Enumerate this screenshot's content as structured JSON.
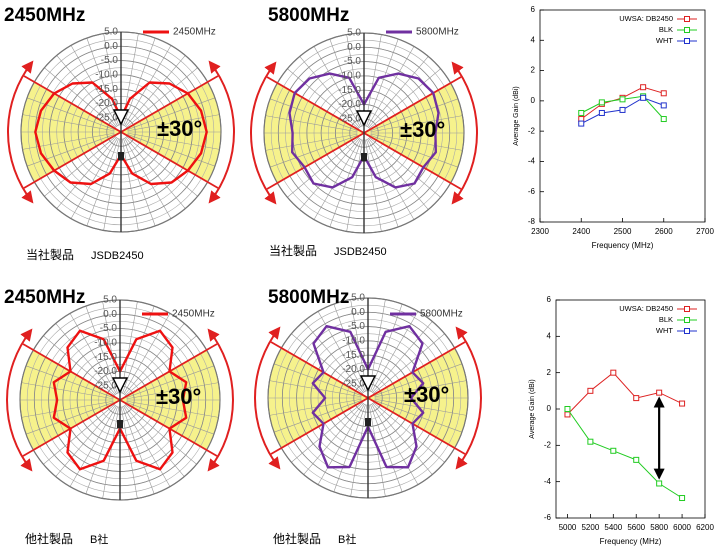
{
  "chart_data": [
    {
      "type": "polar",
      "title": "2450MHz",
      "annotation": "±30°",
      "sector": 30,
      "caption": [
        "当社製品",
        "JSDB2450"
      ],
      "rlim": [
        -30,
        5
      ],
      "rticks": [
        {
          "value": -25,
          "label": "-25.0"
        },
        {
          "value": -20,
          "label": "-20.0"
        },
        {
          "value": -15,
          "label": "-15.0"
        },
        {
          "value": -10,
          "label": "-10.0"
        },
        {
          "value": -5,
          "label": "-5.0"
        },
        {
          "value": 0,
          "label": "0.0"
        },
        {
          "value": 5,
          "label": "5.0"
        }
      ],
      "theta": [
        0,
        15,
        30,
        45,
        60,
        75,
        90,
        105,
        120,
        135,
        150,
        165,
        180,
        195,
        210,
        225,
        240,
        255,
        270,
        285,
        300,
        315,
        330,
        345
      ],
      "series": [
        {
          "name": "2450MHz",
          "color": "#ee1111",
          "values": [
            0,
            -1,
            -3,
            -6,
            -10,
            -18,
            -25,
            -18,
            -10,
            -6,
            -3,
            -1,
            0,
            -1,
            -3,
            -5,
            -9,
            -15,
            -22,
            -15,
            -9,
            -5,
            -3,
            -1
          ]
        }
      ]
    },
    {
      "type": "polar",
      "title": "5800MHz",
      "annotation": "±30°",
      "sector": 30,
      "caption": [
        "当社製品",
        "JSDB2450"
      ],
      "rlim": [
        -30,
        5
      ],
      "rticks": [
        {
          "value": -25,
          "label": "-25.0"
        },
        {
          "value": -20,
          "label": "-20.0"
        },
        {
          "value": -15,
          "label": "-15.0"
        },
        {
          "value": -10,
          "label": "-10.0"
        },
        {
          "value": -5,
          "label": "-5.0"
        },
        {
          "value": 0,
          "label": "0.0"
        },
        {
          "value": 5,
          "label": "5.0"
        }
      ],
      "theta": [
        0,
        15,
        30,
        45,
        60,
        75,
        90,
        105,
        120,
        135,
        150,
        165,
        180,
        195,
        210,
        225,
        240,
        255,
        270,
        285,
        300,
        315,
        330,
        345
      ],
      "series": [
        {
          "name": "5800MHz",
          "color": "#7030a0",
          "values": [
            -5,
            -3,
            -2,
            -3,
            -6,
            -10,
            -20,
            -10,
            -6,
            -3,
            -2,
            -3,
            -5,
            -4,
            -6,
            -5,
            -8,
            -14,
            -22,
            -14,
            -8,
            -5,
            -6,
            -4
          ]
        }
      ]
    },
    {
      "type": "polar",
      "title": "2450MHz",
      "annotation": "±30°",
      "sector": 30,
      "caption": [
        "他社製品",
        "B社"
      ],
      "rlim": [
        -30,
        5
      ],
      "rticks": [
        {
          "value": -25,
          "label": "-25.0"
        },
        {
          "value": -20,
          "label": "-20.0"
        },
        {
          "value": -15,
          "label": "-15.0"
        },
        {
          "value": -10,
          "label": "-10.0"
        },
        {
          "value": -5,
          "label": "-5.0"
        },
        {
          "value": 0,
          "label": "0.0"
        },
        {
          "value": 5,
          "label": "5.0"
        }
      ],
      "theta": [
        0,
        15,
        30,
        45,
        60,
        75,
        90,
        105,
        120,
        135,
        150,
        165,
        180,
        195,
        210,
        225,
        240,
        255,
        270,
        285,
        300,
        315,
        330,
        345
      ],
      "series": [
        {
          "name": "2450MHz",
          "color": "#ee1111",
          "values": [
            -8,
            -6,
            -10,
            -4,
            -2,
            -8,
            -20,
            -8,
            -2,
            -4,
            -10,
            -6,
            -8,
            -6,
            -10,
            -4,
            -2,
            -8,
            -20,
            -8,
            -2,
            -4,
            -10,
            -6
          ]
        }
      ]
    },
    {
      "type": "polar",
      "title": "5800MHz",
      "annotation": "±30°",
      "sector": 30,
      "caption": [
        "他社製品",
        "B社"
      ],
      "rlim": [
        -30,
        5
      ],
      "rticks": [
        {
          "value": -25,
          "label": "-25.0"
        },
        {
          "value": -20,
          "label": "-20.0"
        },
        {
          "value": -15,
          "label": "-15.0"
        },
        {
          "value": -10,
          "label": "-10.0"
        },
        {
          "value": -5,
          "label": "-5.0"
        },
        {
          "value": 0,
          "label": "0.0"
        },
        {
          "value": 5,
          "label": "5.0"
        }
      ],
      "theta": [
        0,
        15,
        30,
        45,
        60,
        75,
        90,
        105,
        120,
        135,
        150,
        165,
        180,
        195,
        210,
        225,
        240,
        255,
        270,
        285,
        300,
        315,
        330,
        345
      ],
      "series": [
        {
          "name": "5800MHz",
          "color": "#7030a0",
          "values": [
            -15,
            -10,
            -12,
            -3,
            -1,
            -6,
            -20,
            -6,
            -1,
            -3,
            -12,
            -10,
            -15,
            -10,
            -12,
            -6,
            -2,
            -5,
            -20,
            -5,
            -2,
            -6,
            -12,
            -10
          ]
        }
      ]
    },
    {
      "type": "line",
      "x_label": "Frequency (MHz)",
      "y_label": "Average Gain (dBi)",
      "x": [
        2400,
        2450,
        2500,
        2550,
        2600
      ],
      "xlim": [
        2300,
        2700
      ],
      "xticks": [
        2300,
        2400,
        2500,
        2600,
        2700
      ],
      "ylim": [
        -8,
        6
      ],
      "yticks": [
        -8,
        -6,
        -4,
        -2,
        0,
        2,
        4,
        6
      ],
      "series": [
        {
          "name": "UWSA: DB2450",
          "color": "#dd2222",
          "values": [
            -1.2,
            -0.2,
            0.2,
            0.9,
            0.5
          ]
        },
        {
          "name": "BLK",
          "color": "#22cc22",
          "values": [
            -0.8,
            -0.1,
            0.1,
            0.3,
            -1.2
          ]
        },
        {
          "name": "WHT",
          "color": "#2233cc",
          "values": [
            -1.5,
            -0.8,
            -0.6,
            0.2,
            -0.3
          ]
        }
      ]
    },
    {
      "type": "line",
      "x_label": "Frequency (MHz)",
      "y_label": "Average Gain (dBi)",
      "x": [
        5000,
        5200,
        5400,
        5600,
        5800,
        6000
      ],
      "xlim": [
        4900,
        6200
      ],
      "xticks": [
        5000,
        5200,
        5400,
        5600,
        5800,
        6000,
        6200
      ],
      "ylim": [
        -6,
        6
      ],
      "yticks": [
        -6,
        -4,
        -2,
        0,
        2,
        4,
        6
      ],
      "series": [
        {
          "name": "UWSA: DB2450",
          "color": "#dd2222",
          "values": [
            -0.3,
            1,
            2,
            0.6,
            0.9,
            0.3
          ]
        },
        {
          "name": "BLK",
          "color": "#22cc22",
          "values": [
            0,
            -1.8,
            -2.3,
            -2.8,
            -4.1,
            -4.9
          ]
        },
        {
          "name": "WHT",
          "color": "#2233cc",
          "values": [
            null,
            null,
            null,
            null,
            null,
            null
          ]
        }
      ]
    }
  ]
}
